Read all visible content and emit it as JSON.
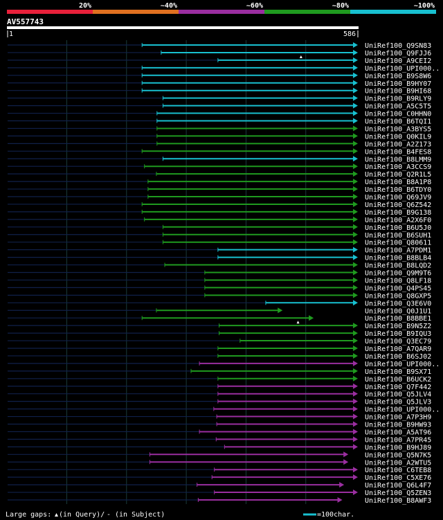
{
  "legend": {
    "bins": [
      {
        "label": "20%",
        "color": "#e8203a"
      },
      {
        "label": "~40%",
        "color": "#e07020"
      },
      {
        "label": "~60%",
        "color": "#9a2ea0"
      },
      {
        "label": "~80%",
        "color": "#1f9a1f"
      },
      {
        "label": "~100%",
        "color": "#18c0d0"
      }
    ]
  },
  "query": {
    "id": "AV557743",
    "start_label": "1",
    "end_label": "586"
  },
  "footer": {
    "gaps_prefix": "Large gaps:",
    "gaps_query": "(in Query)/",
    "gaps_dash": "-",
    "gaps_subject": "(in Subject)",
    "scale_label": "=100char."
  },
  "chart_data": {
    "type": "alignment",
    "x_range": [
      1,
      586
    ],
    "scale_bar_chars": 100,
    "colors": {
      "cyan": "#18c0d0",
      "green": "#1f9a1f",
      "purple": "#9a2ea0",
      "navy": "#10204a",
      "query_bar": "#ffffff",
      "grid": "#1a3a3a"
    },
    "hits": [
      {
        "name": "UniRef100_Q9SN83",
        "start": 226,
        "end": 586,
        "color": "cyan"
      },
      {
        "name": "UniRef100_Q9FJJ6",
        "start": 258,
        "end": 586,
        "color": "cyan",
        "gap_query": 492
      },
      {
        "name": "UniRef100_A9CEI2",
        "start": 353,
        "end": 586,
        "color": "cyan"
      },
      {
        "name": "UniRef100_UPI000..",
        "start": 226,
        "end": 586,
        "color": "cyan"
      },
      {
        "name": "UniRef100_B9S8W6",
        "start": 226,
        "end": 586,
        "color": "cyan"
      },
      {
        "name": "UniRef100_B9HY07",
        "start": 226,
        "end": 586,
        "color": "cyan"
      },
      {
        "name": "UniRef100_B9HI68",
        "start": 226,
        "end": 586,
        "color": "cyan"
      },
      {
        "name": "UniRef100_B9RLY9",
        "start": 261,
        "end": 586,
        "color": "cyan"
      },
      {
        "name": "UniRef100_A5C5T5",
        "start": 261,
        "end": 586,
        "color": "cyan"
      },
      {
        "name": "UniRef100_C0HHN0",
        "start": 251,
        "end": 586,
        "color": "cyan"
      },
      {
        "name": "UniRef100_B6TQI1",
        "start": 251,
        "end": 586,
        "color": "cyan"
      },
      {
        "name": "UniRef100_A3BYS5",
        "start": 251,
        "end": 586,
        "color": "green"
      },
      {
        "name": "UniRef100_Q0KIL9",
        "start": 251,
        "end": 586,
        "color": "green"
      },
      {
        "name": "UniRef100_A2Z173",
        "start": 251,
        "end": 586,
        "color": "green"
      },
      {
        "name": "UniRef100_B4FES8",
        "start": 226,
        "end": 586,
        "color": "green"
      },
      {
        "name": "UniRef100_B8LMM9",
        "start": 261,
        "end": 586,
        "color": "cyan"
      },
      {
        "name": "UniRef100_A3CCS9",
        "start": 230,
        "end": 586,
        "color": "green"
      },
      {
        "name": "UniRef100_Q2R1L5",
        "start": 250,
        "end": 586,
        "color": "green"
      },
      {
        "name": "UniRef100_B8A1P8",
        "start": 236,
        "end": 586,
        "color": "green"
      },
      {
        "name": "UniRef100_B6TDY0",
        "start": 236,
        "end": 586,
        "color": "green"
      },
      {
        "name": "UniRef100_Q69JV9",
        "start": 236,
        "end": 586,
        "color": "green"
      },
      {
        "name": "UniRef100_Q6Z542",
        "start": 226,
        "end": 586,
        "color": "green"
      },
      {
        "name": "UniRef100_B9G138",
        "start": 226,
        "end": 586,
        "color": "green"
      },
      {
        "name": "UniRef100_A2X6F0",
        "start": 230,
        "end": 586,
        "color": "green"
      },
      {
        "name": "UniRef100_B6U5J0",
        "start": 261,
        "end": 586,
        "color": "green"
      },
      {
        "name": "UniRef100_B6SUH1",
        "start": 261,
        "end": 586,
        "color": "green"
      },
      {
        "name": "UniRef100_Q80611",
        "start": 261,
        "end": 586,
        "color": "green"
      },
      {
        "name": "UniRef100_A7PDM1",
        "start": 353,
        "end": 586,
        "color": "cyan"
      },
      {
        "name": "UniRef100_B8BLB4",
        "start": 353,
        "end": 586,
        "color": "cyan"
      },
      {
        "name": "UniRef100_B8LQD2",
        "start": 264,
        "end": 586,
        "color": "green"
      },
      {
        "name": "UniRef100_Q9M9T6",
        "start": 331,
        "end": 586,
        "color": "green"
      },
      {
        "name": "UniRef100_Q8LF18",
        "start": 331,
        "end": 586,
        "color": "green"
      },
      {
        "name": "UniRef100_Q4PS45",
        "start": 331,
        "end": 586,
        "color": "green"
      },
      {
        "name": "UniRef100_Q8GXP5",
        "start": 331,
        "end": 586,
        "color": "green"
      },
      {
        "name": "UniRef100_Q3E6V0",
        "start": 433,
        "end": 586,
        "color": "cyan"
      },
      {
        "name": "UniRef100_Q0J1U1",
        "start": 250,
        "end": 460,
        "color": "green"
      },
      {
        "name": "UniRef100_B8BBE1",
        "start": 226,
        "end": 512,
        "color": "green",
        "gap_query": 487
      },
      {
        "name": "UniRef100_B9N5Z2",
        "start": 355,
        "end": 586,
        "color": "green"
      },
      {
        "name": "UniRef100_B9IQU3",
        "start": 355,
        "end": 586,
        "color": "green"
      },
      {
        "name": "UniRef100_Q3EC79",
        "start": 390,
        "end": 586,
        "color": "green"
      },
      {
        "name": "UniRef100_A7QAR9",
        "start": 353,
        "end": 586,
        "color": "green"
      },
      {
        "name": "UniRef100_B6SJ02",
        "start": 353,
        "end": 586,
        "color": "green"
      },
      {
        "name": "UniRef100_UPI000..",
        "start": 322,
        "end": 586,
        "color": "purple"
      },
      {
        "name": "UniRef100_B9SX71",
        "start": 308,
        "end": 586,
        "color": "green"
      },
      {
        "name": "UniRef100_B6UCK2",
        "start": 353,
        "end": 586,
        "color": "green"
      },
      {
        "name": "UniRef100_Q7F442",
        "start": 353,
        "end": 586,
        "color": "purple"
      },
      {
        "name": "UniRef100_Q5JLV4",
        "start": 353,
        "end": 586,
        "color": "purple"
      },
      {
        "name": "UniRef100_Q5JLV3",
        "start": 353,
        "end": 586,
        "color": "purple"
      },
      {
        "name": "UniRef100_UPI000..",
        "start": 346,
        "end": 586,
        "color": "purple"
      },
      {
        "name": "UniRef100_A7P3H9",
        "start": 351,
        "end": 586,
        "color": "purple"
      },
      {
        "name": "UniRef100_B9HW93",
        "start": 351,
        "end": 586,
        "color": "purple"
      },
      {
        "name": "UniRef100_A5AT96",
        "start": 322,
        "end": 586,
        "color": "purple"
      },
      {
        "name": "UniRef100_A7PR45",
        "start": 350,
        "end": 586,
        "color": "purple"
      },
      {
        "name": "UniRef100_B9HJ89",
        "start": 364,
        "end": 586,
        "color": "purple"
      },
      {
        "name": "UniRef100_Q5N7K5",
        "start": 239,
        "end": 570,
        "color": "purple"
      },
      {
        "name": "UniRef100_A2WTU5",
        "start": 239,
        "end": 570,
        "color": "purple"
      },
      {
        "name": "UniRef100_C6TEB8",
        "start": 347,
        "end": 586,
        "color": "purple"
      },
      {
        "name": "UniRef100_C5XE76",
        "start": 343,
        "end": 586,
        "color": "purple"
      },
      {
        "name": "UniRef100_Q6L4F7",
        "start": 318,
        "end": 563,
        "color": "purple"
      },
      {
        "name": "UniRef100_Q5ZEN3",
        "start": 347,
        "end": 586,
        "color": "purple"
      },
      {
        "name": "UniRef100_B8AWF3",
        "start": 320,
        "end": 560,
        "color": "purple"
      }
    ]
  }
}
